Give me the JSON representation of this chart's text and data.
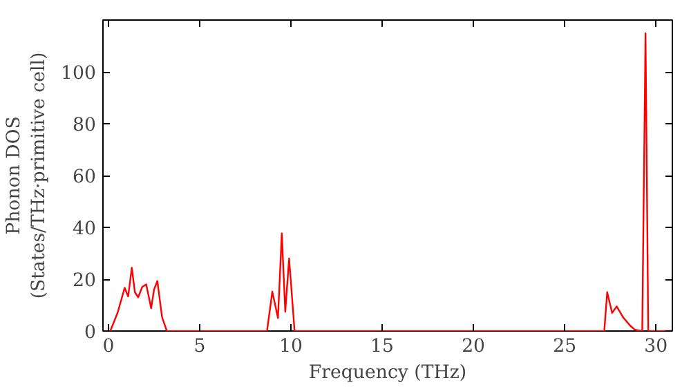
{
  "chart_data": {
    "type": "line",
    "xlabel": "Frequency (THz)",
    "ylabel": "Phonon DOS\n(States/THz·primitive cell)",
    "xlim": [
      -0.3,
      30.9
    ],
    "ylim": [
      0,
      120
    ],
    "xticks": [
      0,
      5,
      10,
      15,
      20,
      25,
      30
    ],
    "yticks": [
      0,
      20,
      40,
      60,
      80,
      100
    ],
    "grid": false,
    "line_style": "solid",
    "series": [
      {
        "color": "#ff0000",
        "x": [
          0.0,
          0.1,
          0.5,
          0.89,
          1.08,
          1.28,
          1.45,
          1.63,
          1.85,
          2.07,
          2.34,
          2.5,
          2.68,
          2.94,
          3.2,
          5.0,
          8.0,
          8.69,
          8.98,
          9.29,
          9.5,
          9.69,
          9.9,
          10.2,
          15.0,
          20.0,
          25.0,
          27.17,
          27.33,
          27.6,
          27.85,
          28.2,
          28.6,
          28.85,
          29.25,
          29.43,
          29.58,
          30.9
        ],
        "values": [
          0,
          0,
          7,
          16.7,
          13.3,
          24.4,
          15,
          13,
          17,
          18,
          8.8,
          16,
          19.3,
          5.3,
          0,
          0,
          0,
          0,
          15.2,
          5,
          37.7,
          7.4,
          28,
          0,
          0,
          0,
          0,
          0,
          15,
          7,
          9.5,
          5.3,
          2,
          0.5,
          0,
          114.9,
          0,
          0
        ]
      }
    ]
  }
}
